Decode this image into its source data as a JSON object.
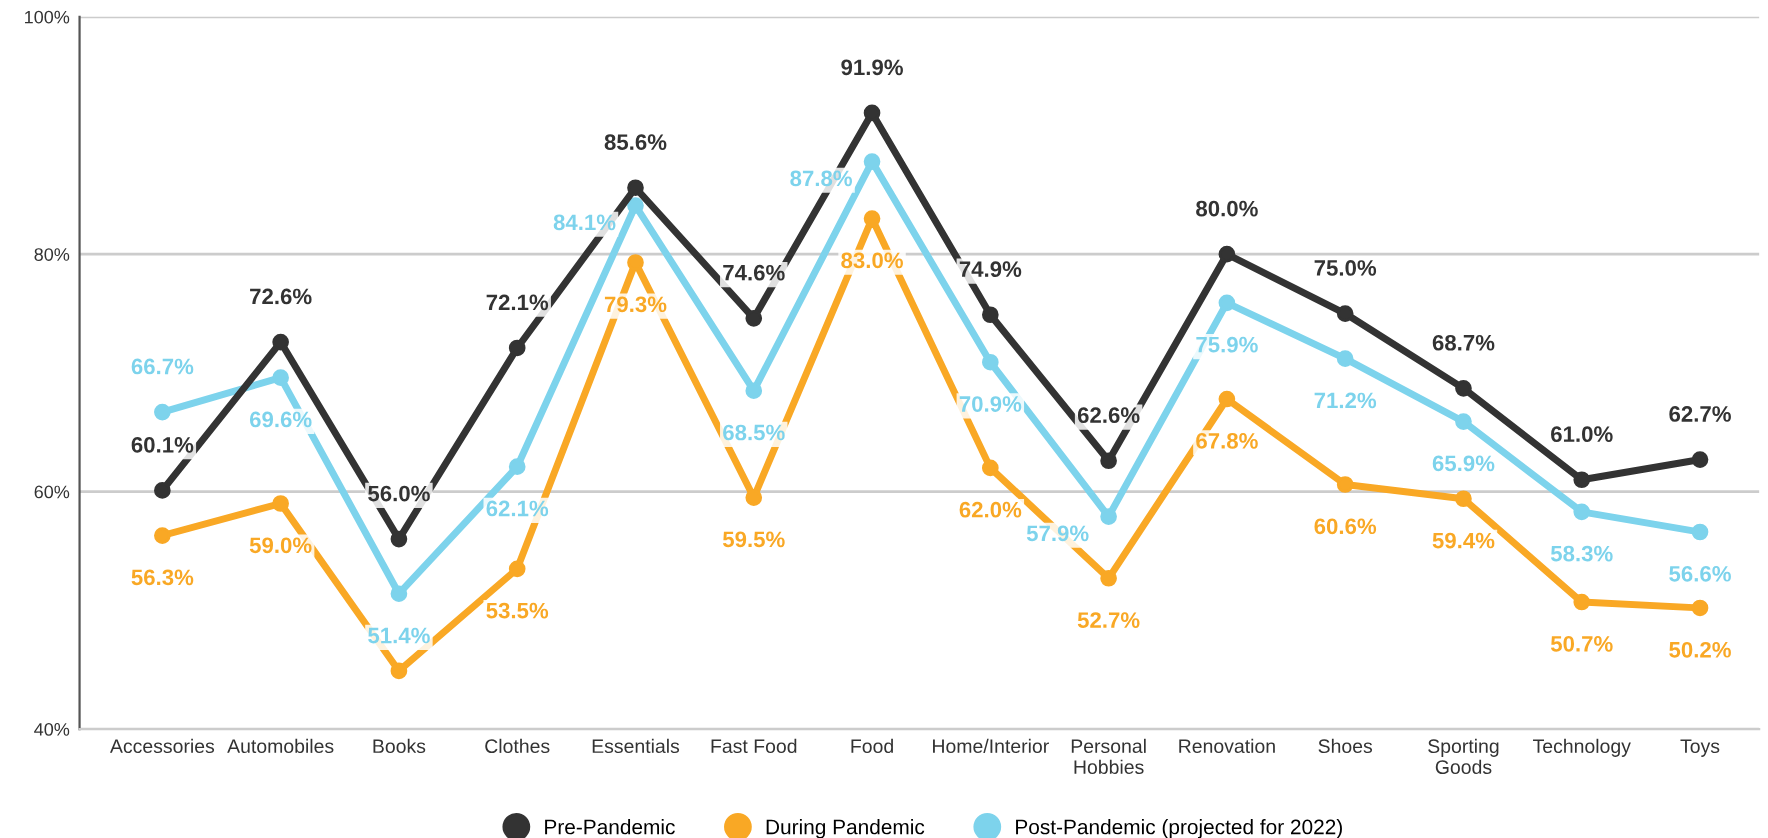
{
  "chart_data": {
    "type": "line",
    "categories": [
      "Accessories",
      "Automobiles",
      "Books",
      "Clothes",
      "Essentials",
      "Fast Food",
      "Food",
      "Home/Interior",
      "Personal\nHobbies",
      "Renovation",
      "Shoes",
      "Sporting\nGoods",
      "Technology",
      "Toys"
    ],
    "series": [
      {
        "name": "Pre-Pandemic",
        "color": "#333333",
        "values": [
          60.1,
          72.6,
          56.0,
          72.1,
          85.6,
          74.6,
          91.9,
          74.9,
          62.6,
          80.0,
          75.0,
          68.7,
          61.0,
          62.7
        ],
        "value_labels": [
          "60.1%",
          "72.6%",
          "56.0%",
          "72.1%",
          "85.6%",
          "74.6%",
          "91.9%",
          "74.9%",
          "62.6%",
          "80.0%",
          "75.0%",
          "68.7%",
          "61.0%",
          "62.7%"
        ]
      },
      {
        "name": "During Pandemic",
        "color": "#f9a825",
        "values": [
          56.3,
          59.0,
          44.9,
          53.5,
          79.3,
          59.5,
          83.0,
          62.0,
          52.7,
          67.8,
          60.6,
          59.4,
          50.7,
          50.2
        ],
        "value_labels": [
          "56.3%",
          "59.0%",
          null,
          "53.5%",
          "79.3%",
          "59.5%",
          "83.0%",
          "62.0%",
          "52.7%",
          "67.8%",
          "60.6%",
          "59.4%",
          "50.7%",
          "50.2%"
        ]
      },
      {
        "name": "Post-Pandemic (projected for 2022)",
        "color": "#7dd3ec",
        "values": [
          66.7,
          69.6,
          51.4,
          62.1,
          84.1,
          68.5,
          87.8,
          70.9,
          57.9,
          75.9,
          71.2,
          65.9,
          58.3,
          56.6
        ],
        "value_labels": [
          "66.7%",
          "69.6%",
          "51.4%",
          "62.1%",
          "84.1%",
          "68.5%",
          "87.8%",
          "70.9%",
          "57.9%",
          "75.9%",
          "71.2%",
          "65.9%",
          "58.3%",
          "56.6%"
        ]
      }
    ],
    "ylim": [
      40,
      100
    ],
    "yticks": [
      {
        "value": 40,
        "label": "40%"
      },
      {
        "value": 60,
        "label": "60%"
      },
      {
        "value": 80,
        "label": "80%"
      },
      {
        "value": 100,
        "label": "100%"
      }
    ],
    "grid": "y",
    "legend": "bottom",
    "marker": "circle",
    "line_style": "solid"
  }
}
